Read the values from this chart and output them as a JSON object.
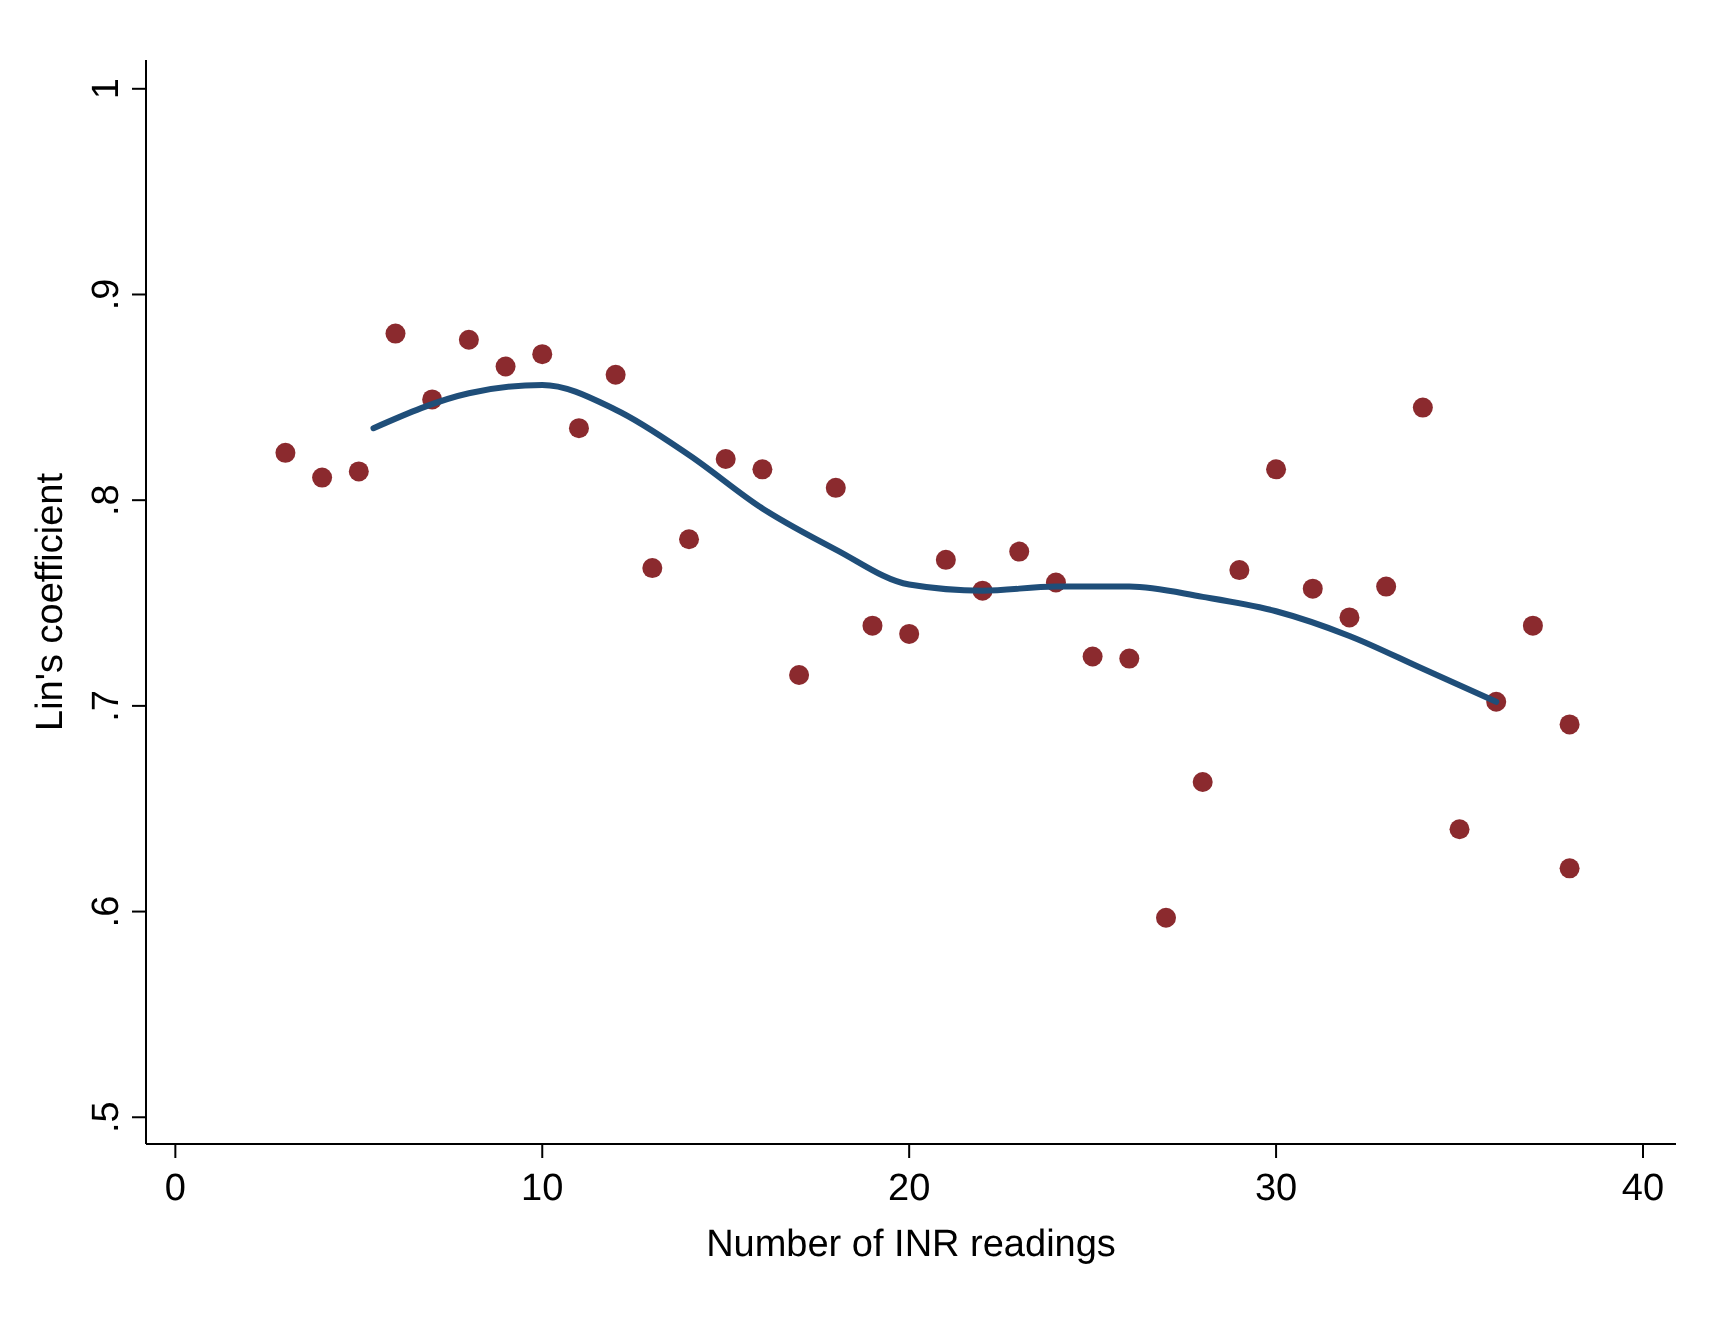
{
  "chart_data": {
    "type": "scatter",
    "xlabel": "Number of INR readings",
    "ylabel": "Lin's coefficient",
    "xlim": [
      -0.8,
      40.9
    ],
    "ylim": [
      0.487,
      1.014
    ],
    "xticks": [
      0,
      10,
      20,
      30,
      40
    ],
    "yticks": [
      {
        "value": 0.5,
        "label": ".5"
      },
      {
        "value": 0.6,
        "label": ".6"
      },
      {
        "value": 0.7,
        "label": ".7"
      },
      {
        "value": 0.8,
        "label": ".8"
      },
      {
        "value": 0.9,
        "label": ".9"
      },
      {
        "value": 1,
        "label": "1"
      }
    ],
    "grid": false,
    "marker": "circle",
    "series": [
      {
        "color": "#8b2a2e",
        "x": [
          3,
          4,
          5,
          6,
          7,
          8,
          9,
          10,
          11,
          12,
          13,
          14,
          15,
          16,
          17,
          18,
          19,
          20,
          21,
          22,
          23,
          24,
          25,
          26,
          27,
          28,
          29,
          30,
          31,
          32,
          33,
          34,
          35,
          36,
          37,
          38,
          38
        ],
        "values": [
          0.823,
          0.811,
          0.814,
          0.881,
          0.849,
          0.878,
          0.865,
          0.871,
          0.835,
          0.861,
          0.767,
          0.781,
          0.82,
          0.815,
          0.715,
          0.806,
          0.739,
          0.735,
          0.771,
          0.756,
          0.775,
          0.76,
          0.724,
          0.723,
          0.597,
          0.663,
          0.766,
          0.815,
          0.757,
          0.743,
          0.758,
          0.845,
          0.64,
          0.702,
          0.739,
          0.691,
          0.621
        ]
      },
      {
        "type": "line",
        "color": "#1f4e79",
        "marker": "none",
        "line_style": "solid",
        "x": [
          5.4,
          8,
          10,
          12,
          14,
          16,
          18,
          20,
          22,
          24,
          26,
          28,
          30,
          32,
          34,
          36
        ],
        "values": [
          0.835,
          0.852,
          0.856,
          0.844,
          0.822,
          0.796,
          0.776,
          0.759,
          0.756,
          0.758,
          0.758,
          0.753,
          0.746,
          0.734,
          0.718,
          0.702
        ]
      }
    ]
  }
}
